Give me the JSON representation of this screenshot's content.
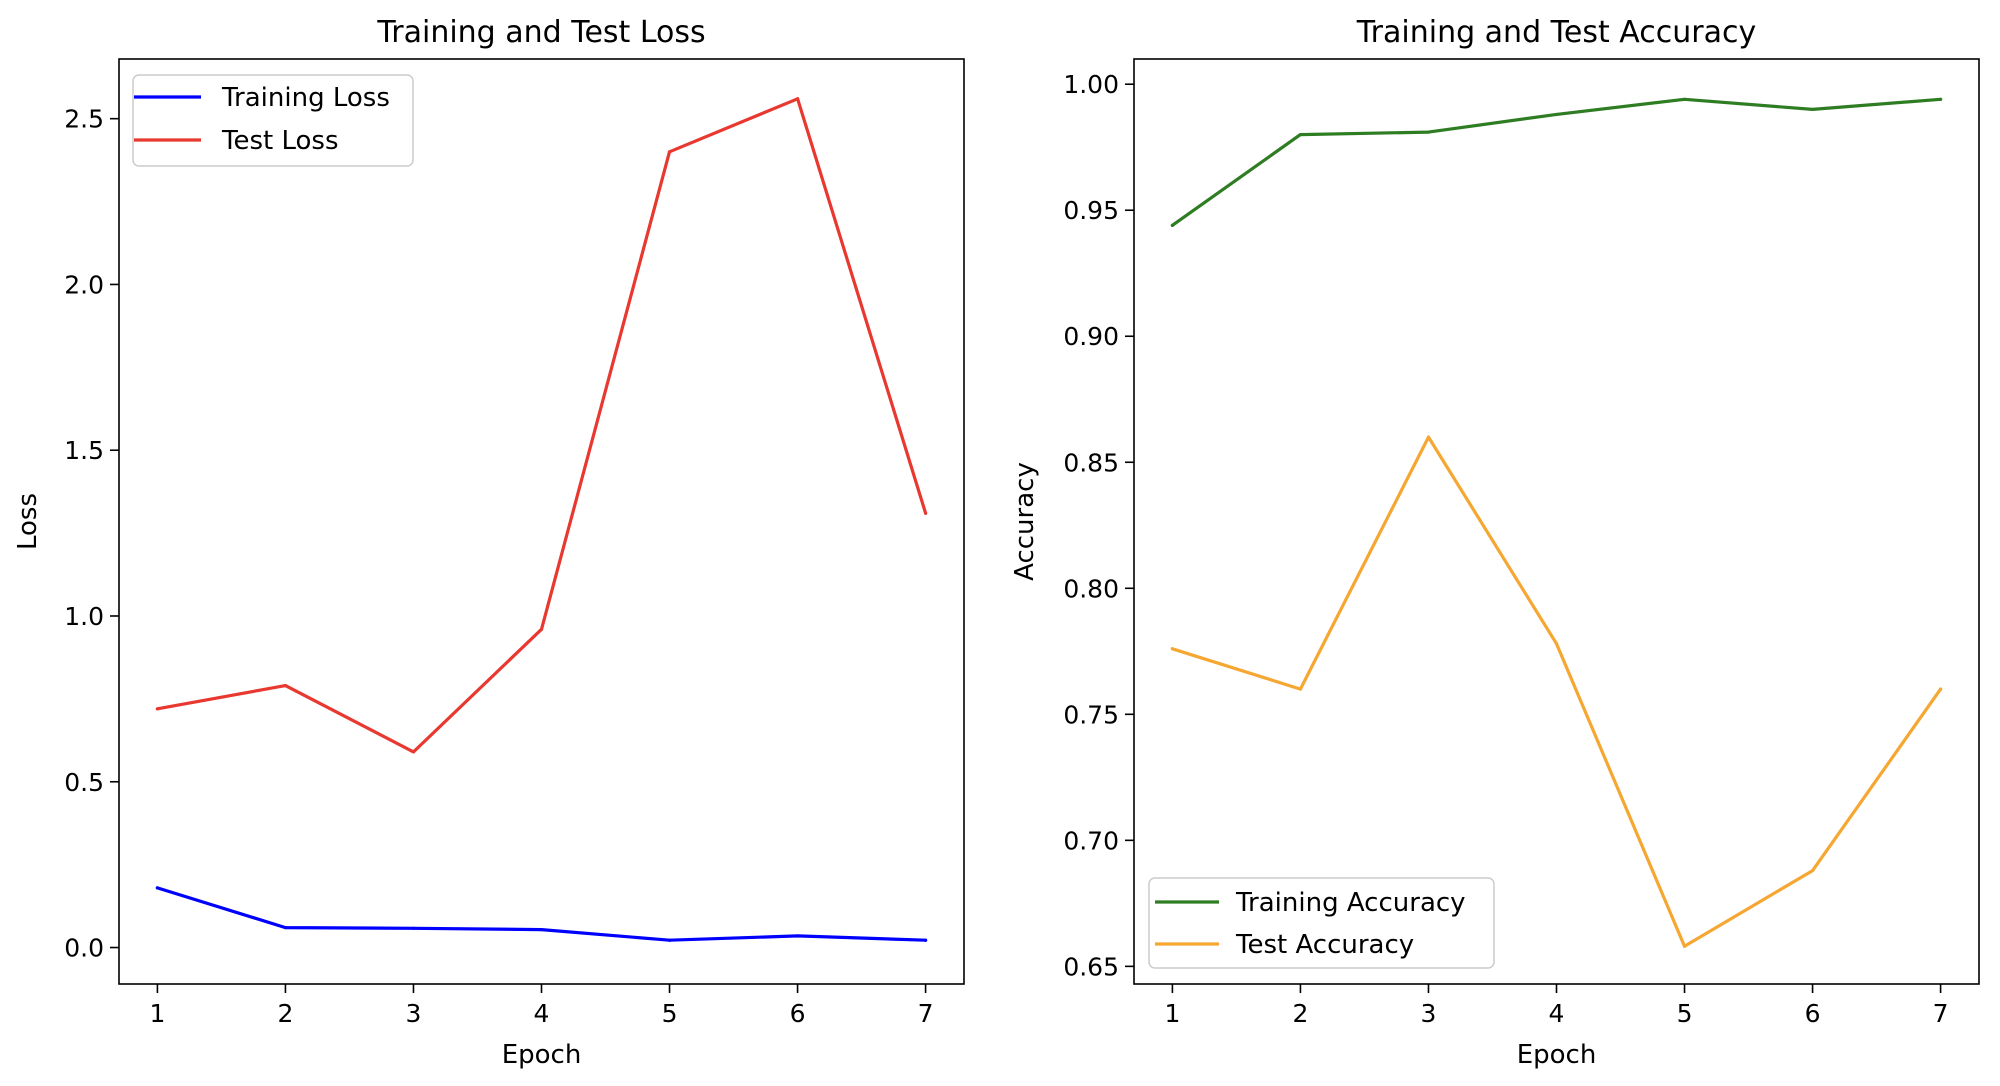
{
  "chart_data": [
    {
      "type": "line",
      "title": "Training and Test Loss",
      "xlabel": "Epoch",
      "ylabel": "Loss",
      "x": [
        1,
        2,
        3,
        4,
        5,
        6,
        7
      ],
      "xlim": [
        0.7,
        7.3
      ],
      "ylim": [
        -0.11,
        2.68
      ],
      "xticks": [
        1,
        2,
        3,
        4,
        5,
        6,
        7
      ],
      "yticks": [
        0.0,
        0.5,
        1.0,
        1.5,
        2.0,
        2.5
      ],
      "ytick_labels": [
        "0.0",
        "0.5",
        "1.0",
        "1.5",
        "2.0",
        "2.5"
      ],
      "grid": false,
      "legend": {
        "position": "top-left"
      },
      "series": [
        {
          "name": "Training Loss",
          "color": "#0000ff",
          "values": [
            0.18,
            0.06,
            0.058,
            0.054,
            0.022,
            0.035,
            0.022
          ]
        },
        {
          "name": "Test Loss",
          "color": "#e8382f",
          "values": [
            0.72,
            0.79,
            0.59,
            0.96,
            2.4,
            2.56,
            1.31
          ]
        }
      ]
    },
    {
      "type": "line",
      "title": "Training and Test Accuracy",
      "xlabel": "Epoch",
      "ylabel": "Accuracy",
      "x": [
        1,
        2,
        3,
        4,
        5,
        6,
        7
      ],
      "xlim": [
        0.7,
        7.3
      ],
      "ylim": [
        0.643,
        1.01
      ],
      "xticks": [
        1,
        2,
        3,
        4,
        5,
        6,
        7
      ],
      "yticks": [
        0.65,
        0.7,
        0.75,
        0.8,
        0.85,
        0.9,
        0.95,
        1.0
      ],
      "ytick_labels": [
        "0.65",
        "0.70",
        "0.75",
        "0.80",
        "0.85",
        "0.90",
        "0.95",
        "1.00"
      ],
      "grid": false,
      "legend": {
        "position": "bottom-left"
      },
      "series": [
        {
          "name": "Training Accuracy",
          "color": "#2e7d23",
          "values": [
            0.944,
            0.98,
            0.981,
            0.988,
            0.994,
            0.99,
            0.994
          ]
        },
        {
          "name": "Test Accuracy",
          "color": "#f5a732",
          "values": [
            0.776,
            0.76,
            0.86,
            0.778,
            0.658,
            0.688,
            0.76
          ]
        }
      ]
    }
  ]
}
